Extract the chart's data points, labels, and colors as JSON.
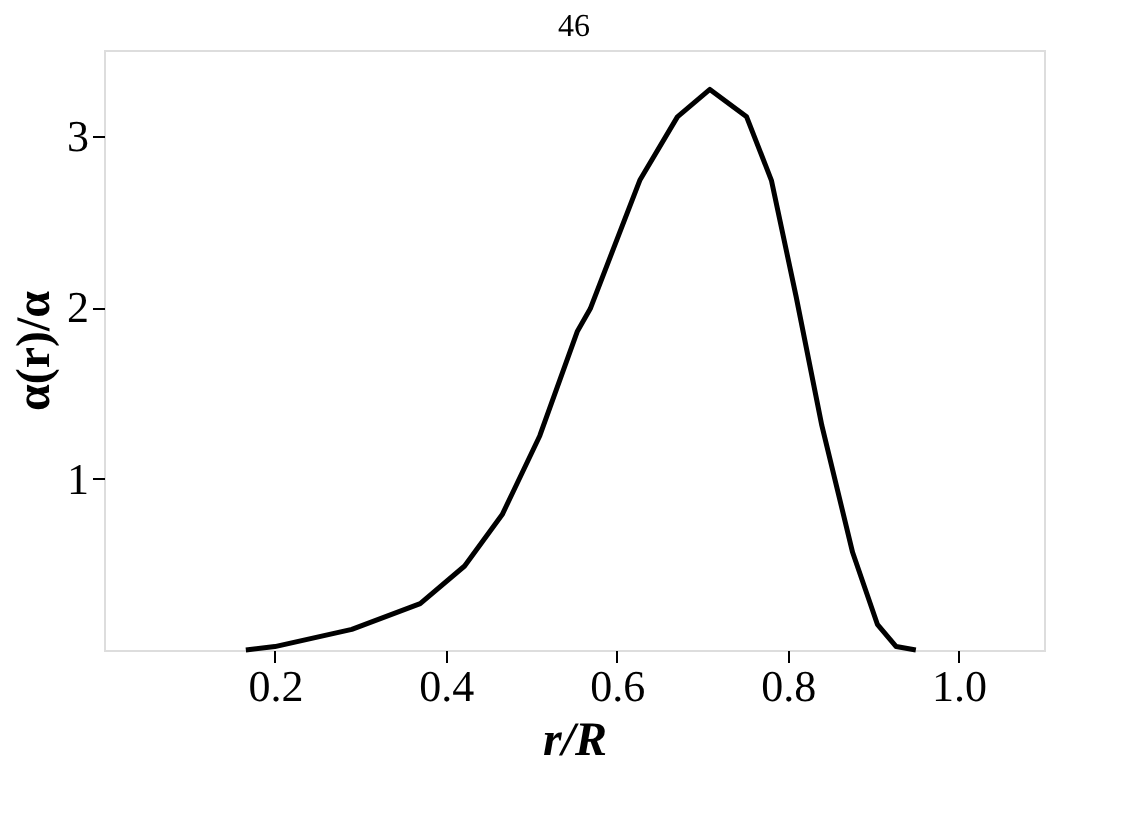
{
  "chart_data": {
    "type": "line",
    "annotations": [
      "46"
    ],
    "xlabel": "r/R",
    "ylabel": "α(r)/α",
    "x": [
      0.166,
      0.2,
      0.29,
      0.37,
      0.422,
      0.466,
      0.51,
      0.554,
      0.569,
      0.627,
      0.671,
      0.709,
      0.752,
      0.781,
      0.81,
      0.84,
      0.876,
      0.905,
      0.927,
      0.95
    ],
    "series": [
      {
        "color": "#000000",
        "values": [
          0,
          0.02,
          0.12,
          0.27,
          0.49,
          0.79,
          1.25,
          1.86,
          1.99,
          2.74,
          3.11,
          3.27,
          3.11,
          2.74,
          2.06,
          1.31,
          0.57,
          0.15,
          0.02,
          0
        ]
      }
    ],
    "xlim": [
      0,
      1.1
    ],
    "xticks": [
      0.2,
      0.4,
      0.6,
      0.8,
      {
        "value": 1.0,
        "label": "1.0"
      }
    ],
    "ylim": [
      0,
      3.5
    ],
    "yticks": [
      1,
      2,
      3
    ],
    "grid": false,
    "legend": false,
    "marker": "none",
    "line_style": "solid"
  }
}
